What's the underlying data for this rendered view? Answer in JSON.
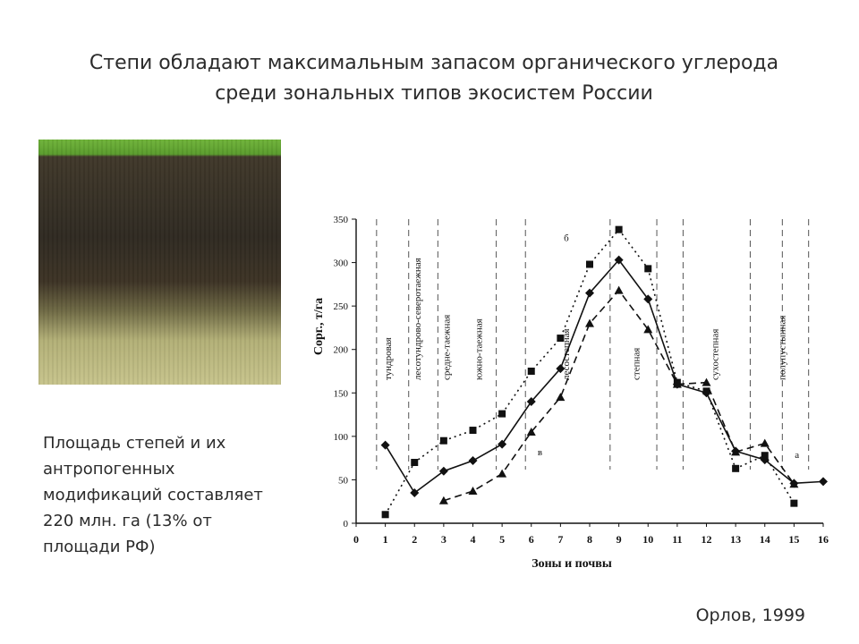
{
  "slide": {
    "title_lines": [
      "Степи обладают максимальным запасом органического углерода",
      "среди зональных типов экосистем России"
    ],
    "note_lines": [
      "Площадь степей и их",
      "антропогенных",
      "модификаций составляет",
      "220 млн. га (13% от",
      "площади РФ)"
    ],
    "credit": "Орлов, 1999"
  },
  "image": {
    "name": "soil-profile-photo"
  },
  "chart_data": {
    "type": "line",
    "xlabel": "Зоны и почвы",
    "ylabel": "Сорг., т/га",
    "xlim": [
      0,
      16
    ],
    "ylim": [
      0,
      350
    ],
    "x_ticks": [
      0,
      1,
      2,
      3,
      4,
      5,
      6,
      7,
      8,
      9,
      10,
      11,
      12,
      13,
      14,
      15,
      16
    ],
    "y_ticks": [
      0,
      50,
      100,
      150,
      200,
      250,
      300,
      350
    ],
    "zone_boundaries": [
      0.7,
      1.8,
      2.8,
      4.8,
      5.8,
      8.7,
      10.3,
      11.2,
      13.5,
      14.6,
      15.5
    ],
    "zone_labels": [
      {
        "text": "тундровая",
        "x": 1.2
      },
      {
        "text": "лесотундрово-северотаежная",
        "x": 2.2
      },
      {
        "text": "средне-таежная",
        "x": 3.2
      },
      {
        "text": "южно-таежная",
        "x": 4.3
      },
      {
        "text": "лесостепная",
        "x": 7.3
      },
      {
        "text": "степная",
        "x": 9.7
      },
      {
        "text": "сухостепная",
        "x": 12.4
      },
      {
        "text": "полупустынная",
        "x": 14.7
      }
    ],
    "series": [
      {
        "name": "а",
        "marker": "diamond",
        "dash": "solid",
        "x": [
          1,
          2,
          3,
          4,
          5,
          6,
          7,
          8,
          9,
          10,
          11,
          12,
          13,
          14,
          15,
          16
        ],
        "y": [
          90,
          35,
          60,
          72,
          91,
          140,
          178,
          265,
          303,
          258,
          160,
          150,
          83,
          73,
          46,
          48
        ]
      },
      {
        "name": "б",
        "marker": "square",
        "dash": "dotted",
        "x": [
          1,
          2,
          3,
          4,
          5,
          6,
          7,
          8,
          9,
          10,
          11,
          12,
          13,
          14,
          15
        ],
        "y": [
          10,
          70,
          95,
          107,
          126,
          175,
          213,
          298,
          338,
          293,
          162,
          152,
          63,
          78,
          23
        ]
      },
      {
        "name": "в",
        "marker": "triangle",
        "dash": "dashed",
        "x": [
          3,
          4,
          5,
          6,
          7,
          8,
          9,
          10,
          11,
          12,
          13,
          14,
          15
        ],
        "y": [
          26,
          37,
          57,
          105,
          145,
          230,
          268,
          223,
          160,
          162,
          82,
          92,
          45
        ]
      }
    ],
    "annotations": [
      {
        "text": "б",
        "x": 7.2,
        "y": 325
      },
      {
        "text": "в",
        "x": 6.3,
        "y": 78
      },
      {
        "text": "а",
        "x": 15.1,
        "y": 75
      }
    ]
  }
}
